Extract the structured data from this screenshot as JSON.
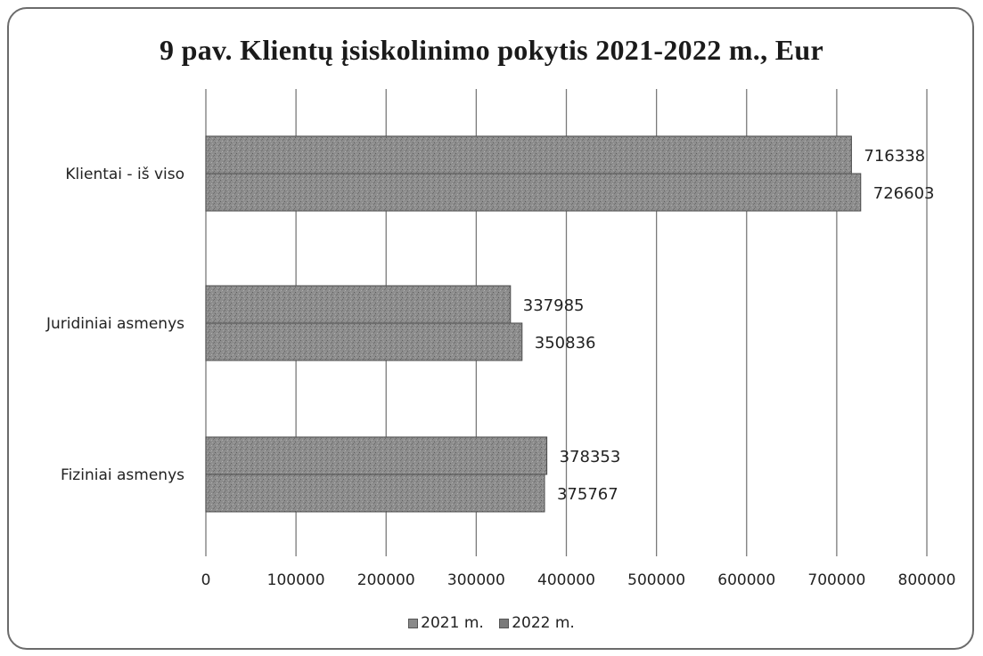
{
  "chart_data": {
    "type": "bar",
    "orientation": "horizontal",
    "title": "9 pav. Klientų įsiskolinimo pokytis 2021-2022 m., Eur",
    "categories": [
      "Klientai - iš viso",
      "Juridiniai asmenys",
      "Fiziniai asmenys"
    ],
    "series": [
      {
        "name": "2021 m.",
        "values": [
          716338,
          337985,
          378353
        ],
        "color": "#8a8a8a"
      },
      {
        "name": "2022 m.",
        "values": [
          726603,
          350836,
          375767
        ],
        "color": "#7a7a7a"
      }
    ],
    "xlim": [
      0,
      800000
    ],
    "ticks": [
      0,
      100000,
      200000,
      300000,
      400000,
      500000,
      600000,
      700000,
      800000
    ],
    "tick_labels": [
      "0",
      "100000",
      "200000",
      "300000",
      "400000",
      "500000",
      "600000",
      "700000",
      "800000"
    ],
    "grid": true,
    "legend_position": "bottom"
  }
}
